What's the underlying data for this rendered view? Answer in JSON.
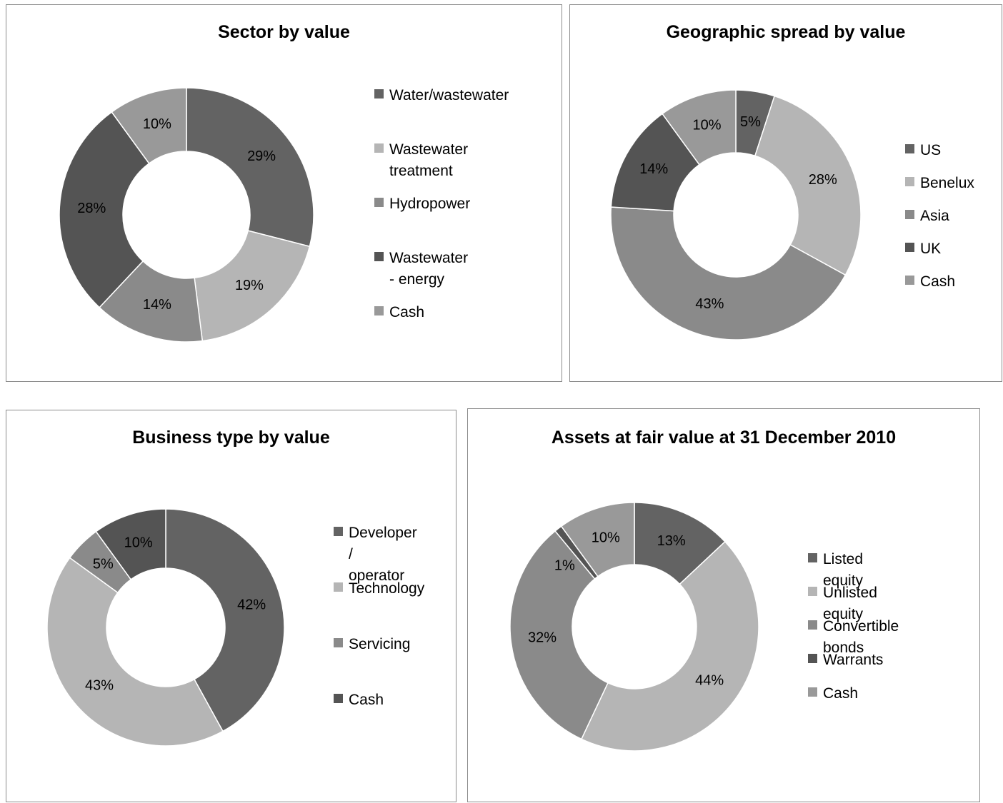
{
  "colors": {
    "dark_gray": "#636363",
    "light_gray": "#b5b5b5",
    "mid_gray": "#8a8a8a",
    "darker_gray": "#545454",
    "cash_gray": "#999999"
  },
  "chart_data": [
    {
      "type": "pie",
      "donut": true,
      "title": "Sector by value",
      "categories": [
        "Water/wastewater",
        "Wastewater treatment",
        "Hydropower",
        "Wastewater - energy",
        "Cash"
      ],
      "legend_labels": [
        "Water/wastewater",
        "Wastewater\ntreatment",
        "Hydropower",
        "Wastewater - energy",
        "Cash"
      ],
      "values": [
        29,
        19,
        14,
        28,
        10
      ],
      "labels": [
        "29%",
        "19%",
        "14%",
        "28%",
        "10%"
      ],
      "colors": [
        "#636363",
        "#b5b5b5",
        "#8a8a8a",
        "#545454",
        "#999999"
      ],
      "legend_position": "right"
    },
    {
      "type": "pie",
      "donut": true,
      "title": "Geographic spread by value",
      "categories": [
        "US",
        "Benelux",
        "Asia",
        "UK",
        "Cash"
      ],
      "legend_labels": [
        "US",
        "Benelux",
        "Asia",
        "UK",
        "Cash"
      ],
      "values": [
        5,
        28,
        43,
        14,
        10
      ],
      "labels": [
        "5%",
        "28%",
        "43%",
        "14%",
        "10%"
      ],
      "colors": [
        "#636363",
        "#b5b5b5",
        "#8a8a8a",
        "#545454",
        "#999999"
      ],
      "legend_position": "right"
    },
    {
      "type": "pie",
      "donut": true,
      "title": "Business type by value",
      "categories": [
        "Developer / operator",
        "Technology",
        "Servicing",
        "Cash"
      ],
      "legend_labels": [
        "Developer /\noperator",
        "Technology",
        "Servicing",
        "Cash"
      ],
      "values": [
        42,
        43,
        5,
        10
      ],
      "labels": [
        "42%",
        "43%",
        "5%",
        "10%"
      ],
      "colors": [
        "#636363",
        "#b5b5b5",
        "#8a8a8a",
        "#545454"
      ],
      "legend_position": "right"
    },
    {
      "type": "pie",
      "donut": true,
      "title": "Assets at fair value at 31 December 2010",
      "categories": [
        "Listed equity",
        "Unlisted equity",
        "Convertible bonds",
        "Warrants",
        "Cash"
      ],
      "legend_labels": [
        "Listed equity",
        "Unlisted equity",
        "Convertible bonds",
        "Warrants",
        "Cash"
      ],
      "values": [
        13,
        44,
        32,
        1,
        10
      ],
      "labels": [
        "13%",
        "44%",
        "32%",
        "1%",
        "10%"
      ],
      "colors": [
        "#636363",
        "#b5b5b5",
        "#8a8a8a",
        "#545454",
        "#999999"
      ],
      "legend_position": "right"
    }
  ]
}
